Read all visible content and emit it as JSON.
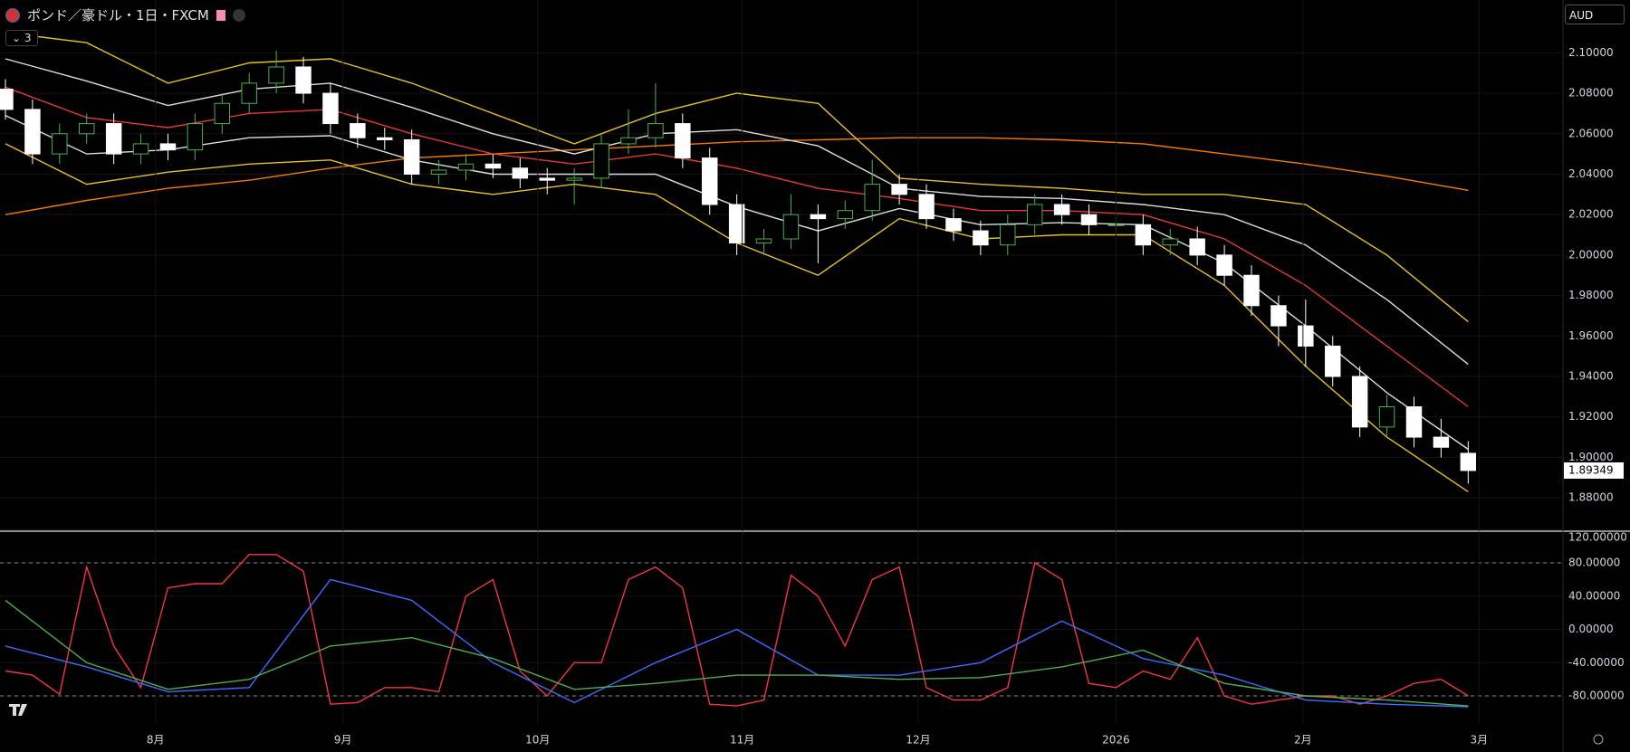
{
  "header": {
    "title": "ポンド／豪ドル・1日・FXCM",
    "interval_badge": "3",
    "currency": "AUD"
  },
  "chart_data": [
    {
      "type": "candlestick",
      "x": [
        0,
        1,
        2,
        3,
        4,
        5,
        6,
        7,
        8,
        9,
        10,
        11,
        12,
        13,
        14,
        15,
        16,
        17,
        18,
        19,
        20,
        21,
        22,
        23,
        24,
        25,
        26,
        27,
        28,
        29,
        30,
        31,
        32,
        33,
        34,
        35,
        36,
        37,
        38,
        39,
        40,
        41,
        42,
        43,
        44,
        45,
        46,
        47,
        48,
        49,
        50,
        51,
        52,
        53,
        54
      ],
      "open": [
        2.082,
        2.072,
        2.05,
        2.06,
        2.065,
        2.05,
        2.055,
        2.052,
        2.065,
        2.075,
        2.085,
        2.093,
        2.08,
        2.065,
        2.058,
        2.057,
        2.04,
        2.042,
        2.045,
        2.043,
        2.038,
        2.037,
        2.038,
        2.055,
        2.058,
        2.065,
        2.048,
        2.025,
        2.006,
        2.008,
        2.02,
        2.018,
        2.022,
        2.035,
        2.03,
        2.018,
        2.012,
        2.005,
        2.015,
        2.025,
        2.02,
        2.015,
        2.015,
        2.005,
        2.008,
        2.0,
        1.99,
        1.975,
        1.965,
        1.955,
        1.94,
        1.915,
        1.925,
        1.91,
        1.902
      ],
      "high": [
        2.087,
        2.077,
        2.065,
        2.07,
        2.07,
        2.06,
        2.06,
        2.07,
        2.08,
        2.09,
        2.101,
        2.098,
        2.085,
        2.07,
        2.063,
        2.062,
        2.047,
        2.05,
        2.05,
        2.048,
        2.043,
        2.043,
        2.06,
        2.072,
        2.085,
        2.07,
        2.053,
        2.03,
        2.013,
        2.03,
        2.025,
        2.027,
        2.047,
        2.04,
        2.035,
        2.023,
        2.017,
        2.02,
        2.03,
        2.03,
        2.025,
        2.02,
        2.02,
        2.013,
        2.014,
        2.005,
        1.995,
        1.98,
        1.978,
        1.96,
        1.945,
        1.931,
        1.93,
        1.919,
        1.908
      ],
      "low": [
        2.067,
        2.045,
        2.045,
        2.055,
        2.045,
        2.045,
        2.047,
        2.047,
        2.06,
        2.07,
        2.08,
        2.075,
        2.06,
        2.053,
        2.052,
        2.035,
        2.035,
        2.037,
        2.038,
        2.033,
        2.03,
        2.025,
        2.033,
        2.05,
        2.053,
        2.043,
        2.02,
        2.0,
        2.001,
        2.003,
        1.996,
        2.013,
        2.017,
        2.025,
        2.013,
        2.007,
        2.0,
        2.0,
        2.01,
        2.015,
        2.01,
        2.01,
        2.0,
        2.0,
        1.995,
        1.985,
        1.97,
        1.955,
        1.945,
        1.935,
        1.91,
        1.91,
        1.905,
        1.9,
        1.887
      ],
      "close": [
        2.072,
        2.05,
        2.06,
        2.065,
        2.05,
        2.055,
        2.052,
        2.065,
        2.075,
        2.085,
        2.093,
        2.08,
        2.065,
        2.058,
        2.057,
        2.04,
        2.042,
        2.045,
        2.043,
        2.038,
        2.037,
        2.038,
        2.055,
        2.058,
        2.065,
        2.048,
        2.025,
        2.006,
        2.008,
        2.02,
        2.018,
        2.022,
        2.035,
        2.03,
        2.018,
        2.012,
        2.005,
        2.015,
        2.025,
        2.02,
        2.015,
        2.015,
        2.005,
        2.008,
        2.0,
        1.99,
        1.975,
        1.965,
        1.955,
        1.94,
        1.915,
        1.925,
        1.91,
        1.905,
        1.8935
      ],
      "up_color": "#4caf50",
      "down_color": "#ffffff",
      "series": [
        {
          "color": "#f57c00",
          "x": [
            0,
            3,
            6,
            9,
            12,
            15,
            18,
            21,
            24,
            27,
            30,
            33,
            36,
            39,
            42,
            45,
            48,
            51,
            54
          ],
          "values": [
            2.02,
            2.027,
            2.033,
            2.037,
            2.043,
            2.048,
            2.05,
            2.052,
            2.054,
            2.056,
            2.057,
            2.058,
            2.058,
            2.057,
            2.055,
            2.05,
            2.045,
            2.039,
            2.032
          ]
        },
        {
          "color": "#e6c229",
          "x": [
            0,
            3,
            6,
            9,
            12,
            15,
            18,
            21,
            24,
            27,
            30,
            33,
            36,
            39,
            42,
            45,
            48,
            51,
            54
          ],
          "values": [
            2.11,
            2.105,
            2.085,
            2.095,
            2.097,
            2.085,
            2.07,
            2.055,
            2.07,
            2.08,
            2.075,
            2.038,
            2.035,
            2.033,
            2.03,
            2.03,
            2.025,
            2.0,
            1.967
          ]
        },
        {
          "color": "#dddddd",
          "x": [
            0,
            3,
            6,
            9,
            12,
            15,
            18,
            21,
            24,
            27,
            30,
            33,
            36,
            39,
            42,
            45,
            48,
            51,
            54
          ],
          "values": [
            2.097,
            2.086,
            2.074,
            2.082,
            2.085,
            2.073,
            2.06,
            2.05,
            2.06,
            2.062,
            2.054,
            2.033,
            2.029,
            2.028,
            2.025,
            2.02,
            2.005,
            1.978,
            1.946
          ]
        },
        {
          "color": "#e53935",
          "x": [
            0,
            3,
            6,
            9,
            12,
            15,
            18,
            21,
            24,
            27,
            30,
            33,
            36,
            39,
            42,
            45,
            48,
            51,
            54
          ],
          "values": [
            2.083,
            2.068,
            2.063,
            2.07,
            2.072,
            2.06,
            2.05,
            2.045,
            2.05,
            2.043,
            2.033,
            2.028,
            2.022,
            2.022,
            2.02,
            2.008,
            1.985,
            1.955,
            1.925
          ]
        },
        {
          "color": "#dddddd",
          "x": [
            0,
            3,
            6,
            9,
            12,
            15,
            18,
            21,
            24,
            27,
            30,
            33,
            36,
            39,
            42,
            45,
            48,
            51,
            54
          ],
          "values": [
            2.069,
            2.05,
            2.052,
            2.058,
            2.059,
            2.047,
            2.04,
            2.04,
            2.04,
            2.024,
            2.012,
            2.023,
            2.015,
            2.016,
            2.015,
            1.996,
            1.965,
            1.932,
            1.904
          ]
        },
        {
          "color": "#e6c229",
          "x": [
            0,
            3,
            6,
            9,
            12,
            15,
            18,
            21,
            24,
            27,
            30,
            33,
            36,
            39,
            42,
            45,
            48,
            51,
            54
          ],
          "values": [
            2.055,
            2.035,
            2.041,
            2.045,
            2.047,
            2.035,
            2.03,
            2.035,
            2.03,
            2.006,
            1.99,
            2.018,
            2.008,
            2.01,
            2.01,
            1.985,
            1.945,
            1.91,
            1.883
          ]
        }
      ],
      "xlim": [
        -0.2,
        57.5
      ],
      "ylim": [
        1.8635,
        2.1261
      ],
      "yticks": [
        {
          "value": 2.1,
          "label": "2.10000"
        },
        {
          "value": 2.08,
          "label": "2.08000"
        },
        {
          "value": 2.06,
          "label": "2.06000"
        },
        {
          "value": 2.04,
          "label": "2.04000"
        },
        {
          "value": 2.02,
          "label": "2.02000"
        },
        {
          "value": 2.0,
          "label": "2.00000"
        },
        {
          "value": 1.98,
          "label": "1.98000"
        },
        {
          "value": 1.96,
          "label": "1.96000"
        },
        {
          "value": 1.94,
          "label": "1.94000"
        },
        {
          "value": 1.92,
          "label": "1.92000"
        },
        {
          "value": 1.9,
          "label": "1.90000"
        },
        {
          "value": 1.88,
          "label": "1.88000"
        }
      ],
      "last_price": {
        "value": 1.89349,
        "label": "1.89349"
      },
      "grid": true
    },
    {
      "type": "line",
      "x": [
        0,
        1,
        2,
        3,
        4,
        5,
        6,
        7,
        8,
        9,
        10,
        11,
        12,
        13,
        14,
        15,
        16,
        17,
        18,
        19,
        20,
        21,
        22,
        23,
        24,
        25,
        26,
        27,
        28,
        29,
        30,
        31,
        32,
        33,
        34,
        35,
        36,
        37,
        38,
        39,
        40,
        41,
        42,
        43,
        44,
        45,
        46,
        47,
        48,
        49,
        50,
        51,
        52,
        53,
        54
      ],
      "series": [
        {
          "color": "#f23645",
          "values": [
            -50,
            -55,
            -78,
            75,
            -20,
            -70,
            50,
            55,
            55,
            90,
            90,
            70,
            -90,
            -88,
            -70,
            -70,
            -75,
            40,
            60,
            -50,
            -80,
            -40,
            -40,
            60,
            75,
            50,
            -90,
            -92,
            -85,
            65,
            40,
            -20,
            60,
            75,
            -70,
            -85,
            -85,
            -70,
            80,
            60,
            -65,
            -70,
            -50,
            -60,
            -10,
            -80,
            -90,
            -85,
            -80,
            -80,
            -90,
            -80,
            -65,
            -60,
            -80
          ]
        },
        {
          "color": "#3d6cff",
          "x": [
            0,
            3,
            6,
            9,
            12,
            15,
            18,
            21,
            24,
            27,
            30,
            33,
            36,
            39,
            42,
            45,
            48,
            51,
            54
          ],
          "values": [
            -20,
            -45,
            -75,
            -70,
            60,
            35,
            -40,
            -88,
            -40,
            0,
            -55,
            -55,
            -40,
            10,
            -35,
            -55,
            -85,
            -90,
            -93
          ]
        },
        {
          "color": "#4caf50",
          "x": [
            0,
            3,
            6,
            9,
            12,
            15,
            18,
            21,
            24,
            27,
            30,
            33,
            36,
            39,
            42,
            45,
            48,
            51,
            54
          ],
          "values": [
            35,
            -40,
            -72,
            -60,
            -20,
            -10,
            -35,
            -72,
            -65,
            -55,
            -55,
            -60,
            -58,
            -45,
            -25,
            -65,
            -80,
            -85,
            -92
          ]
        }
      ],
      "xlim": [
        -0.2,
        57.5
      ],
      "ylim": [
        -113.7,
        117
      ],
      "yticks": [
        {
          "value": 120,
          "label": "120.00000"
        },
        {
          "value": 80,
          "label": "80.00000"
        },
        {
          "value": 40,
          "label": "40.00000"
        },
        {
          "value": 0,
          "label": "0.00000"
        },
        {
          "value": -40,
          "label": "-40.00000"
        },
        {
          "value": -80,
          "label": "-80.00000"
        }
      ],
      "dashed_lines": [
        80,
        -80
      ],
      "xticks": [
        {
          "value": 5.54,
          "label": "8月"
        },
        {
          "value": 12.46,
          "label": "9月"
        },
        {
          "value": 19.65,
          "label": "10月"
        },
        {
          "value": 27.2,
          "label": "11月"
        },
        {
          "value": 33.7,
          "label": "12月"
        },
        {
          "value": 41.0,
          "label": "2026"
        },
        {
          "value": 47.9,
          "label": "2月"
        },
        {
          "value": 54.4,
          "label": "3月"
        }
      ],
      "grid": true
    }
  ]
}
